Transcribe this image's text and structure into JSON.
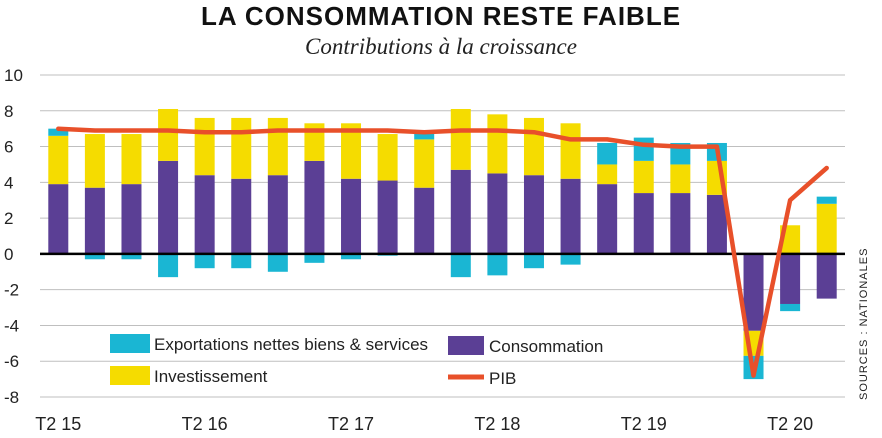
{
  "title": "LA CONSOMMATION RESTE FAIBLE",
  "subtitle": "Contributions à la croissance",
  "source": "SOURCES : NATIONALES",
  "colors": {
    "exports": "#1ab6d3",
    "consumption": "#5b3f95",
    "investment": "#f5dc00",
    "gdp": "#e8502a",
    "grid": "#bfbfbf",
    "zero": "#000000"
  },
  "chart_data": {
    "type": "bar",
    "ylim": [
      -8,
      10
    ],
    "yticks": [
      "10",
      "8",
      "6",
      "4",
      "2",
      "0",
      "-2",
      "-4",
      "-6",
      "-8"
    ],
    "ytick_values": [
      10,
      8,
      6,
      4,
      2,
      0,
      -2,
      -4,
      -6,
      -8
    ],
    "xtick_labels": [
      "T2 15",
      "T2 16",
      "T2 17",
      "T2 18",
      "T2 19",
      "T2 20"
    ],
    "xtick_index": [
      0,
      4,
      8,
      12,
      16,
      20
    ],
    "grid": true,
    "legend_position": "bottom-left",
    "n_periods": 22,
    "series": [
      {
        "name": "Consommation",
        "values": [
          3.9,
          3.7,
          3.9,
          5.2,
          4.4,
          4.2,
          4.4,
          5.2,
          4.2,
          4.1,
          3.7,
          4.7,
          4.5,
          4.4,
          4.2,
          3.9,
          3.4,
          3.4,
          3.3,
          -4.3,
          -2.8,
          -2.5
        ]
      },
      {
        "name": "Investissement",
        "values": [
          2.7,
          3.0,
          2.8,
          2.9,
          3.2,
          3.4,
          3.2,
          2.1,
          3.1,
          2.6,
          2.7,
          3.4,
          3.3,
          3.2,
          3.1,
          1.1,
          1.8,
          1.6,
          1.9,
          -1.4,
          1.6,
          2.8
        ]
      },
      {
        "name": "Exportations nettes biens & services",
        "values": [
          0.4,
          -0.3,
          -0.3,
          -1.3,
          -0.8,
          -0.8,
          -1.0,
          -0.5,
          -0.3,
          -0.1,
          0.5,
          -1.3,
          -1.2,
          -0.8,
          -0.6,
          1.2,
          1.3,
          1.2,
          1.0,
          -1.3,
          -0.4,
          0.4
        ]
      },
      {
        "name": "PIB",
        "type": "line",
        "values": [
          7.0,
          6.9,
          6.9,
          6.9,
          6.8,
          6.8,
          6.9,
          6.9,
          6.9,
          6.9,
          6.8,
          6.9,
          6.9,
          6.8,
          6.4,
          6.4,
          6.1,
          6.0,
          6.0,
          -6.8,
          3.0,
          4.8
        ]
      }
    ]
  },
  "legend": {
    "exports": "Exportations nettes biens & services",
    "consumption": "Consommation",
    "investment": "Investissement",
    "gdp": "PIB"
  }
}
